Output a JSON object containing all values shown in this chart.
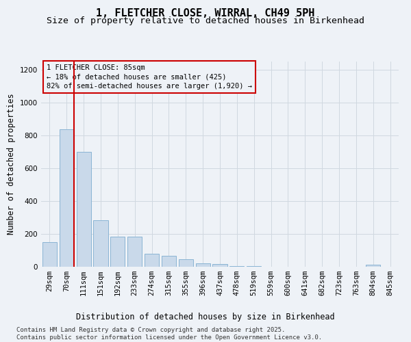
{
  "title": "1, FLETCHER CLOSE, WIRRAL, CH49 5PH",
  "subtitle": "Size of property relative to detached houses in Birkenhead",
  "xlabel": "Distribution of detached houses by size in Birkenhead",
  "ylabel": "Number of detached properties",
  "categories": [
    "29sqm",
    "70sqm",
    "111sqm",
    "151sqm",
    "192sqm",
    "233sqm",
    "274sqm",
    "315sqm",
    "355sqm",
    "396sqm",
    "437sqm",
    "478sqm",
    "519sqm",
    "559sqm",
    "600sqm",
    "641sqm",
    "682sqm",
    "723sqm",
    "763sqm",
    "804sqm",
    "845sqm"
  ],
  "values": [
    150,
    838,
    700,
    285,
    185,
    185,
    80,
    65,
    45,
    20,
    15,
    5,
    5,
    0,
    0,
    0,
    0,
    0,
    0,
    12,
    0
  ],
  "bar_color": "#c9d9ea",
  "bar_edge_color": "#8ab4d4",
  "grid_color": "#d0d8e0",
  "background_color": "#eef2f7",
  "vline_color": "#cc0000",
  "vline_pos": 1.42,
  "annotation_text": "1 FLETCHER CLOSE: 85sqm\n← 18% of detached houses are smaller (425)\n82% of semi-detached houses are larger (1,920) →",
  "annotation_box_color": "#cc0000",
  "annotation_bg": "#eef2f7",
  "ylim": [
    0,
    1250
  ],
  "yticks": [
    0,
    200,
    400,
    600,
    800,
    1000,
    1200
  ],
  "footnote": "Contains HM Land Registry data © Crown copyright and database right 2025.\nContains public sector information licensed under the Open Government Licence v3.0.",
  "title_fontsize": 11,
  "subtitle_fontsize": 9.5,
  "axis_label_fontsize": 8.5,
  "tick_fontsize": 7.5,
  "annotation_fontsize": 7.5,
  "footnote_fontsize": 6.5
}
